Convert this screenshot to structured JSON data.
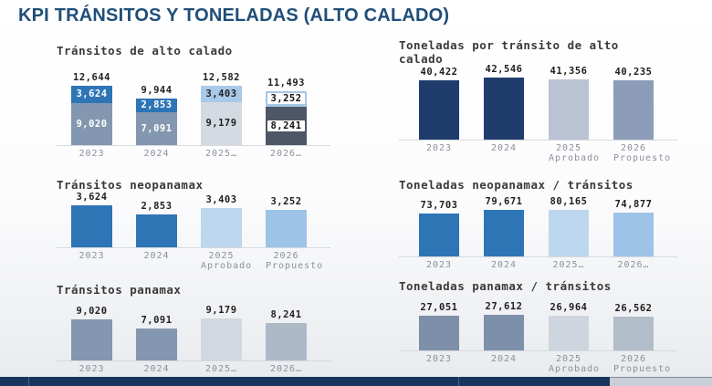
{
  "page": {
    "title": "KPI TRÁNSITOS Y TONELADAS (ALTO CALADO)"
  },
  "theme": {
    "title_color": "#1f4e79",
    "dark_navy": "#1f3c6d",
    "medium_blue": "#2e75b6",
    "light_blue": "#bdd7ee",
    "sky_blue": "#9dc3e6",
    "slate_blue": "#8497b0",
    "light_gray": "#d2d8e0",
    "charcoal": "#4e5766",
    "footer_navy": "#17355e"
  },
  "chart_data": [
    {
      "id": "transitos-alto-calado",
      "type": "stacked-bar",
      "title": "Tránsitos de alto calado",
      "categories": [
        "2023",
        "2024",
        "2025…",
        "2026…"
      ],
      "totals": [
        "12,644",
        "9,944",
        "12,582",
        "11,493"
      ],
      "series": [
        {
          "name": "neopanamax",
          "values": [
            3624,
            2853,
            3403,
            3252
          ],
          "labels": [
            "3,624",
            "2,853",
            "3,403",
            "3,252"
          ]
        },
        {
          "name": "panamax",
          "values": [
            9020,
            7091,
            9179,
            8241
          ],
          "labels": [
            "9,020",
            "7,091",
            "9,179",
            "8,241"
          ]
        }
      ],
      "segment_colors": [
        [
          "#2e75b6",
          "#8497b0"
        ],
        [
          "#2e75b6",
          "#8497b0"
        ],
        [
          "#a9c9e8",
          "#d4dae1"
        ],
        [
          "#a5c6e4",
          "#4e5766"
        ]
      ],
      "label_colors": [
        [
          "#ffffff",
          "#ffffff"
        ],
        [
          "#ffffff",
          "#ffffff"
        ],
        [
          "#1f1f1f",
          "#1f1f1f"
        ],
        [
          "#111111",
          "#111111"
        ]
      ],
      "label_boxed": [
        false,
        false,
        false,
        true
      ],
      "ylim": [
        0,
        14000
      ],
      "legend": "none",
      "grid": false
    },
    {
      "id": "toneladas-por-transito-alto-calado",
      "type": "bar",
      "title": "Toneladas por tránsito de alto calado",
      "categories": [
        "2023",
        "2024",
        "2025\nAprobado",
        "2026\nPropuesto"
      ],
      "values": [
        40422,
        42546,
        41356,
        40235
      ],
      "labels": [
        "40,422",
        "42,546",
        "41,356",
        "40,235"
      ],
      "colors": [
        "#1f3c6d",
        "#1f3c6d",
        "#b9c3d3",
        "#8d9db9"
      ],
      "ylim": [
        0,
        45000
      ],
      "legend": "none",
      "grid": false
    },
    {
      "id": "transitos-neopanamax",
      "type": "bar",
      "title": "Tránsitos neopanamax",
      "categories": [
        "2023",
        "2024",
        "2025\nAprobado",
        "2026\nPropuesto"
      ],
      "values": [
        3624,
        2853,
        3403,
        3252
      ],
      "labels": [
        "3,624",
        "2,853",
        "3,403",
        "3,252"
      ],
      "colors": [
        "#2e75b6",
        "#2e75b6",
        "#bdd7ee",
        "#9dc3e6"
      ],
      "ylim": [
        0,
        4000
      ],
      "legend": "none",
      "grid": false
    },
    {
      "id": "toneladas-neopanamax-transitos",
      "type": "bar",
      "title": "Toneladas neopanamax / tránsitos",
      "categories": [
        "2023",
        "2024",
        "2025…",
        "2026…"
      ],
      "values": [
        73703,
        79671,
        80165,
        74877
      ],
      "labels": [
        "73,703",
        "79,671",
        "80,165",
        "74,877"
      ],
      "colors": [
        "#2e75b6",
        "#2e75b6",
        "#bdd7ee",
        "#9dc3e6"
      ],
      "ylim": [
        0,
        85000
      ],
      "legend": "none",
      "grid": false
    },
    {
      "id": "transitos-panamax",
      "type": "bar",
      "title": "Tránsitos panamax",
      "categories": [
        "2023",
        "2024",
        "2025…",
        "2026…"
      ],
      "values": [
        9020,
        7091,
        9179,
        8241
      ],
      "labels": [
        "9,020",
        "7,091",
        "9,179",
        "8,241"
      ],
      "colors": [
        "#8497b0",
        "#8497b0",
        "#d2d8e0",
        "#aeb9c8"
      ],
      "ylim": [
        0,
        10000
      ],
      "legend": "none",
      "grid": false
    },
    {
      "id": "toneladas-panamax-transitos",
      "type": "bar",
      "title": "Toneladas panamax / tránsitos",
      "categories": [
        "2023",
        "2024",
        "2025\nAprobado",
        "2026\nPropuesto"
      ],
      "values": [
        27051,
        27612,
        26964,
        26562
      ],
      "labels": [
        "27,051",
        "27,612",
        "26,964",
        "26,562"
      ],
      "colors": [
        "#7e8fa9",
        "#7e8fa9",
        "#ced5de",
        "#b2bdca"
      ],
      "ylim": [
        0,
        30000
      ],
      "legend": "none",
      "grid": false
    }
  ]
}
